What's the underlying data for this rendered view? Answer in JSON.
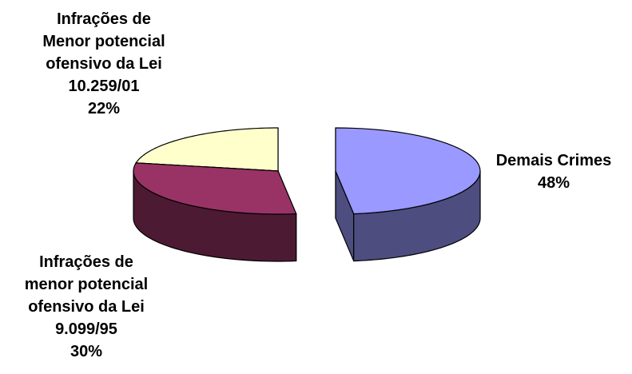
{
  "chart_data": {
    "type": "pie",
    "style": "3d exploded",
    "slices": [
      {
        "name": "Demais Crimes",
        "value": 48,
        "label_lines": [
          "Demais Crimes",
          "48%"
        ],
        "top_color": "#9999ff",
        "side_color": "#4d4d80"
      },
      {
        "name": "Infrações de menor potencial ofensivo da Lei 9.099/95",
        "value": 30,
        "label_lines": [
          "Infrações de",
          "menor potencial",
          "ofensivo da Lei",
          "9.099/95",
          "30%"
        ],
        "top_color": "#993366",
        "side_color": "#4d1a33"
      },
      {
        "name": "Infrações de Menor potencial ofensivo da Lei 10.259/01",
        "value": 22,
        "label_lines": [
          "Infrações de",
          "Menor potencial",
          "ofensivo da Lei",
          "10.259/01",
          "22%"
        ],
        "top_color": "#ffffcc",
        "side_color": "#808066"
      }
    ],
    "legend": "none"
  }
}
